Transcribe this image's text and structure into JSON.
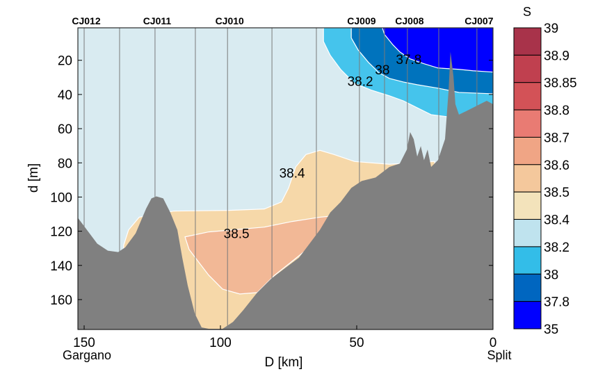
{
  "chart_data": {
    "type": "contour-section",
    "xlabel": "D [km]",
    "ylabel": "d [m]",
    "xlim": [
      0,
      152.3
    ],
    "x_reversed": true,
    "ylim": [
      1,
      177.5
    ],
    "y_reversed": true,
    "x_ticks": [
      150,
      100,
      50,
      0
    ],
    "y_ticks": [
      20,
      40,
      60,
      80,
      100,
      120,
      140,
      160
    ],
    "end_labels": {
      "left": "Gargano",
      "right": "Split"
    },
    "stations": [
      {
        "km": 150.0,
        "label": "CJ012"
      },
      {
        "km": 137.0,
        "label": ""
      },
      {
        "km": 124.0,
        "label": "CJ011"
      },
      {
        "km": 109.2,
        "label": ""
      },
      {
        "km": 97.4,
        "label": "CJ010"
      },
      {
        "km": 81.1,
        "label": ""
      },
      {
        "km": 64.8,
        "label": ""
      },
      {
        "km": 49.0,
        "label": "CJ009"
      },
      {
        "km": 39.8,
        "label": ""
      },
      {
        "km": 31.4,
        "label": "CJ008"
      },
      {
        "km": 19.9,
        "label": ""
      },
      {
        "km": 5.9,
        "label": "CJ007"
      }
    ],
    "background_class": {
      "range": "38.2-38.4",
      "color": "#d9ebf1"
    },
    "regions": [
      {
        "range": "38.4-38.5",
        "color": "#f6d8a9",
        "points": [
          [
            135.5,
            128.2
          ],
          [
            133.7,
            119.2
          ],
          [
            129.8,
            111.8
          ],
          [
            117.1,
            108.2
          ],
          [
            96.7,
            107.8
          ],
          [
            83.9,
            107.0
          ],
          [
            77.6,
            102.9
          ],
          [
            75.0,
            94.7
          ],
          [
            72.4,
            82.4
          ],
          [
            68.6,
            75.1
          ],
          [
            63.5,
            72.7
          ],
          [
            58.4,
            75.1
          ],
          [
            50.8,
            79.2
          ],
          [
            38.0,
            80.8
          ],
          [
            21.4,
            79.2
          ],
          [
            21.4,
            177.5
          ],
          [
            135.5,
            177.5
          ]
        ]
      },
      {
        "range": "38.5-38.6",
        "color": "#f2b896",
        "points": [
          [
            113.0,
            123.3
          ],
          [
            104.3,
            120.4
          ],
          [
            83.9,
            117.6
          ],
          [
            73.7,
            114.3
          ],
          [
            63.5,
            111.8
          ],
          [
            58.4,
            111.0
          ],
          [
            61.0,
            119.2
          ],
          [
            67.3,
            129.4
          ],
          [
            73.7,
            137.6
          ],
          [
            80.1,
            145.7
          ],
          [
            86.5,
            155.9
          ],
          [
            92.9,
            156.7
          ],
          [
            99.2,
            153.9
          ],
          [
            104.3,
            145.7
          ],
          [
            108.2,
            137.6
          ],
          [
            111.5,
            130.6
          ]
        ]
      },
      {
        "range": "38.0-38.2",
        "color": "#45c4ec",
        "points": [
          [
            62.2,
            1
          ],
          [
            0,
            1
          ],
          [
            0,
            51.8
          ],
          [
            12.5,
            53.9
          ],
          [
            22.7,
            51.8
          ],
          [
            27.8,
            47.8
          ],
          [
            32.9,
            43.7
          ],
          [
            38.0,
            40.8
          ],
          [
            44.4,
            37.6
          ],
          [
            50.8,
            33.5
          ],
          [
            55.9,
            25.3
          ],
          [
            59.7,
            17.1
          ],
          [
            62.2,
            9.0
          ]
        ]
      },
      {
        "range": "37.8-38.0",
        "color": "#0073bd",
        "points": [
          [
            52.0,
            1
          ],
          [
            0,
            1
          ],
          [
            0,
            39.6
          ],
          [
            12.5,
            38.8
          ],
          [
            20.2,
            36.3
          ],
          [
            27.8,
            34.3
          ],
          [
            32.9,
            32.7
          ],
          [
            38.0,
            30.6
          ],
          [
            41.8,
            27.3
          ],
          [
            45.7,
            21.2
          ],
          [
            49.5,
            13.9
          ],
          [
            52.0,
            6.9
          ]
        ]
      },
      {
        "range": "35-37.8",
        "color": "#0000ff",
        "points": [
          [
            40.6,
            1
          ],
          [
            0,
            1
          ],
          [
            0,
            26.9
          ],
          [
            7.4,
            26.1
          ],
          [
            12.5,
            25.3
          ],
          [
            20.2,
            24.5
          ],
          [
            25.3,
            22.0
          ],
          [
            30.4,
            19.2
          ],
          [
            34.2,
            15.1
          ],
          [
            36.7,
            11.0
          ],
          [
            39.8,
            4.9
          ]
        ]
      }
    ],
    "bathymetry": {
      "color": "#808080",
      "points": [
        [
          152.3,
          112.2
        ],
        [
          149.0,
          119.2
        ],
        [
          145.2,
          127.3
        ],
        [
          141.3,
          131.4
        ],
        [
          137.5,
          132.2
        ],
        [
          134.9,
          129.4
        ],
        [
          131.1,
          121.2
        ],
        [
          127.3,
          106.9
        ],
        [
          125.3,
          100.8
        ],
        [
          123.5,
          99.6
        ],
        [
          121.0,
          100.8
        ],
        [
          118.4,
          109.0
        ],
        [
          115.8,
          119.2
        ],
        [
          114.0,
          135.5
        ],
        [
          112.0,
          151.8
        ],
        [
          109.4,
          168.2
        ],
        [
          106.9,
          176.3
        ],
        [
          104.3,
          177.1
        ],
        [
          99.2,
          177.1
        ],
        [
          95.4,
          173.1
        ],
        [
          91.6,
          166.1
        ],
        [
          86.5,
          155.9
        ],
        [
          81.4,
          147.8
        ],
        [
          76.3,
          141.6
        ],
        [
          71.2,
          135.5
        ],
        [
          67.3,
          127.3
        ],
        [
          63.5,
          119.2
        ],
        [
          59.7,
          109.0
        ],
        [
          55.9,
          102.9
        ],
        [
          52.0,
          94.7
        ],
        [
          48.2,
          90.6
        ],
        [
          43.1,
          88.6
        ],
        [
          38.0,
          82.4
        ],
        [
          34.2,
          80.4
        ],
        [
          31.6,
          72.2
        ],
        [
          30.4,
          62.0
        ],
        [
          29.1,
          66.1
        ],
        [
          27.8,
          76.3
        ],
        [
          26.5,
          70.2
        ],
        [
          25.3,
          78.4
        ],
        [
          24.0,
          72.2
        ],
        [
          22.7,
          82.4
        ],
        [
          20.2,
          78.4
        ],
        [
          17.6,
          66.1
        ],
        [
          16.3,
          37.6
        ],
        [
          15.6,
          15.1
        ],
        [
          14.5,
          29.4
        ],
        [
          13.8,
          45.7
        ],
        [
          12.5,
          51.8
        ],
        [
          9.9,
          49.8
        ],
        [
          4.8,
          45.7
        ],
        [
          2.3,
          43.7
        ],
        [
          0,
          45.7
        ]
      ]
    },
    "contour_labels": [
      {
        "text": "37.8",
        "km": 30.9,
        "depth": 19.2
      },
      {
        "text": "38",
        "km": 40.6,
        "depth": 25.3
      },
      {
        "text": "38.2",
        "km": 48.7,
        "depth": 32.2
      },
      {
        "text": "38.4",
        "km": 73.7,
        "depth": 85.7
      },
      {
        "text": "38.5",
        "km": 94.1,
        "depth": 121.2
      }
    ],
    "colorbar": {
      "title": "S",
      "labels": [
        "39",
        "38.9",
        "38.85",
        "38.8",
        "38.7",
        "38.6",
        "38.5",
        "38.4",
        "38.2",
        "38",
        "37.8",
        "35"
      ],
      "colors": [
        "#a8334a",
        "#c0404f",
        "#d35257",
        "#e97b73",
        "#f0a585",
        "#f4c89c",
        "#f3e3bb",
        "#bfe3ee",
        "#33bde8",
        "#0066c0",
        "#0000ff"
      ]
    }
  }
}
